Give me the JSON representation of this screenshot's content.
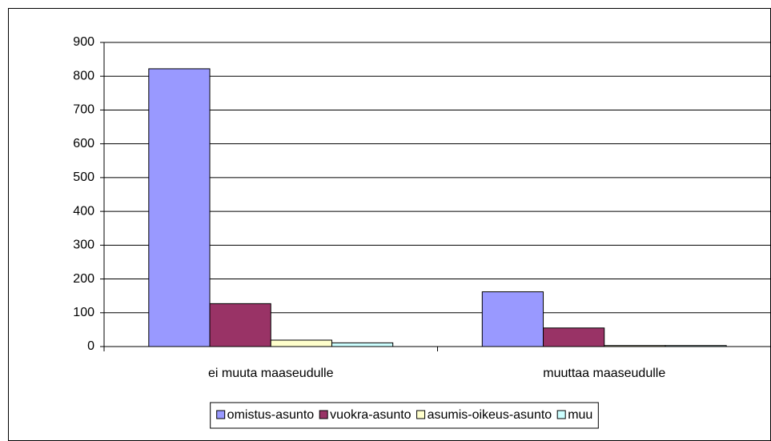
{
  "chart_data": {
    "type": "bar",
    "categories": [
      "ei muuta maaseudulle",
      "muuttaa maaseudulle"
    ],
    "series": [
      {
        "name": "omistus-asunto",
        "color": "#9999ff",
        "values": [
          822,
          162
        ]
      },
      {
        "name": "vuokra-asunto",
        "color": "#993366",
        "values": [
          127,
          55
        ]
      },
      {
        "name": "asumis-oikeus-asunto",
        "color": "#ffffcc",
        "values": [
          19,
          3
        ]
      },
      {
        "name": "muu",
        "color": "#ccffff",
        "values": [
          11,
          3
        ]
      }
    ],
    "ylim": [
      0,
      900
    ],
    "yticks": [
      0,
      100,
      200,
      300,
      400,
      500,
      600,
      700,
      800,
      900
    ],
    "grid": true,
    "legend": "bottom"
  }
}
